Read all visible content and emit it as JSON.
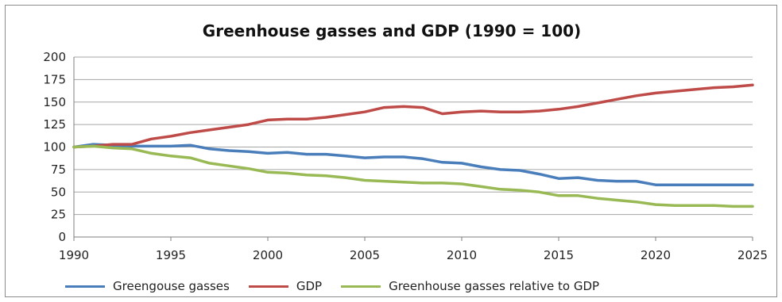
{
  "chart_data": {
    "type": "line",
    "title": "Greenhouse gasses and GDP (1990 = 100)",
    "xlabel": "",
    "ylabel": "",
    "xlim": [
      1990,
      2025
    ],
    "ylim": [
      0,
      200
    ],
    "x_ticks": [
      "1990",
      "1995",
      "2000",
      "2005",
      "2010",
      "2015",
      "2020",
      "2025"
    ],
    "y_ticks": [
      "200",
      "175",
      "150",
      "125",
      "100",
      "75",
      "50",
      "25",
      "0"
    ],
    "grid": "horizontal",
    "legend_position": "bottom",
    "x": [
      1990,
      1991,
      1992,
      1993,
      1994,
      1995,
      1996,
      1997,
      1998,
      1999,
      2000,
      2001,
      2002,
      2003,
      2004,
      2005,
      2006,
      2007,
      2008,
      2009,
      2010,
      2011,
      2012,
      2013,
      2014,
      2015,
      2016,
      2017,
      2018,
      2019,
      2020,
      2021,
      2022,
      2023,
      2024,
      2025
    ],
    "series": [
      {
        "name": "Greengouse gasses",
        "color": "#4a7ebb",
        "values": [
          100,
          103,
          102,
          101,
          101,
          101,
          102,
          98,
          96,
          95,
          93,
          94,
          92,
          92,
          90,
          88,
          89,
          89,
          87,
          83,
          82,
          78,
          75,
          74,
          70,
          65,
          66,
          63,
          62,
          62,
          58,
          58,
          58,
          58,
          58,
          58
        ]
      },
      {
        "name": "GDP",
        "color": "#be4b48",
        "values": [
          100,
          101,
          103,
          103,
          109,
          112,
          116,
          119,
          122,
          125,
          130,
          131,
          131,
          133,
          136,
          139,
          144,
          145,
          144,
          137,
          139,
          140,
          139,
          139,
          140,
          142,
          145,
          149,
          153,
          157,
          160,
          162,
          164,
          166,
          167,
          169
        ]
      },
      {
        "name": "Greenhouse gasses relative to GDP",
        "color": "#98b954",
        "values": [
          100,
          101,
          99,
          98,
          93,
          90,
          88,
          82,
          79,
          76,
          72,
          71,
          69,
          68,
          66,
          63,
          62,
          61,
          60,
          60,
          59,
          56,
          53,
          52,
          50,
          46,
          46,
          43,
          41,
          39,
          36,
          35,
          35,
          35,
          34,
          34
        ]
      }
    ]
  }
}
